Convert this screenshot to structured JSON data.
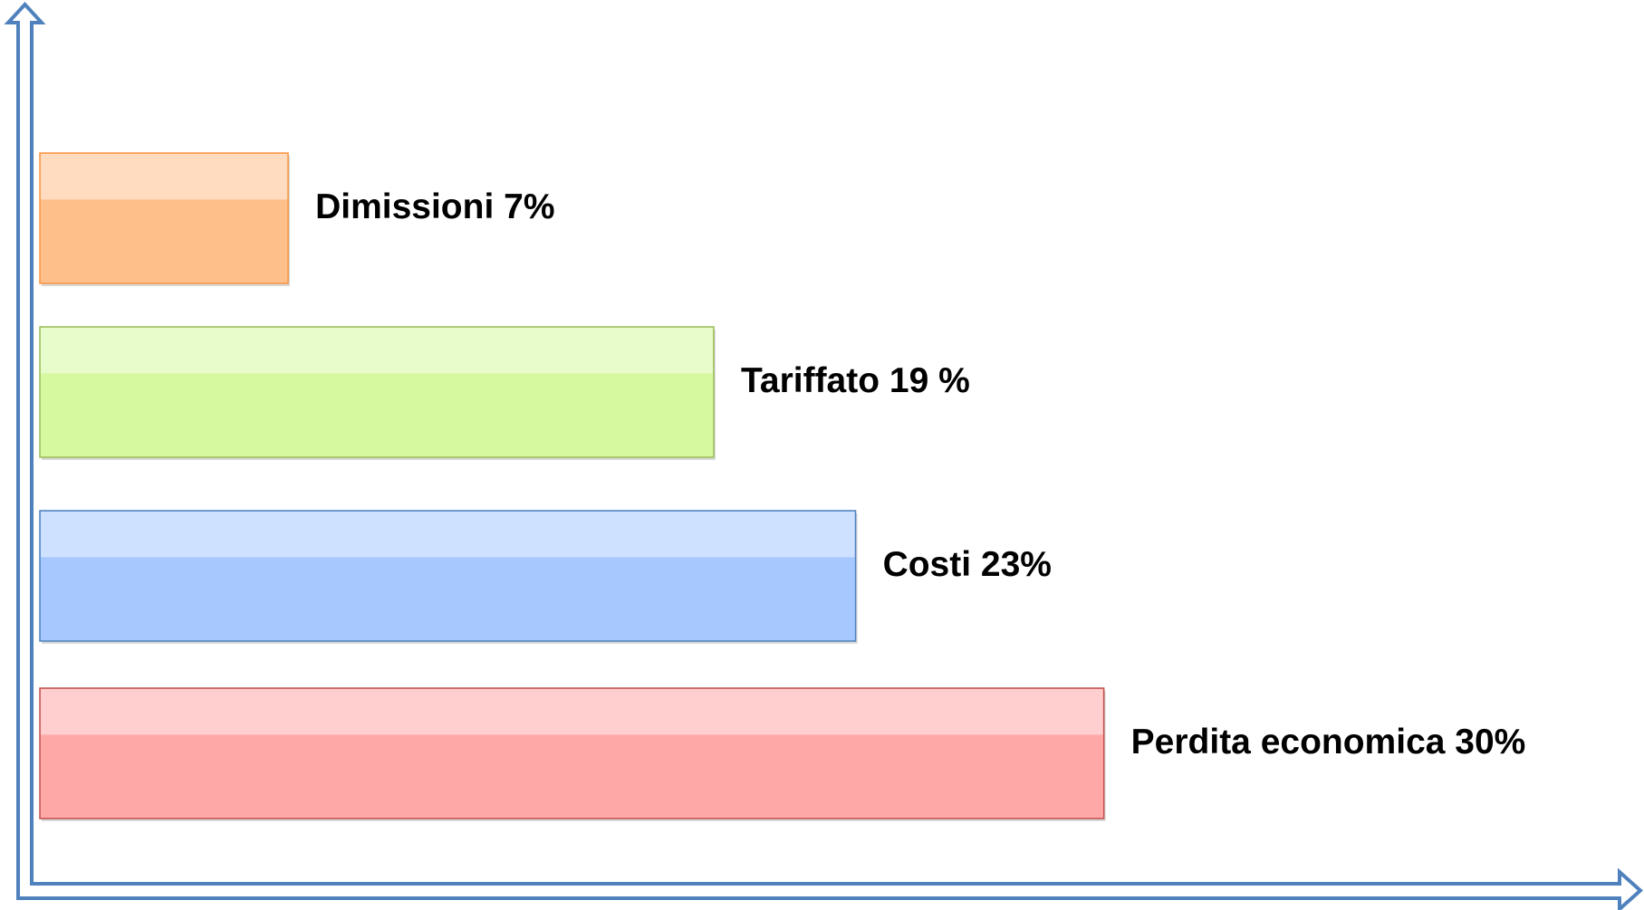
{
  "chart_data": {
    "type": "bar",
    "orientation": "horizontal",
    "categories": [
      "Dimissioni",
      "Tariffato",
      "Costi",
      "Perdita economica"
    ],
    "values": [
      7,
      19,
      23,
      30
    ],
    "value_labels": [
      "7%",
      "19 %",
      "23%",
      "30%"
    ],
    "colors": [
      "#ffbf8a",
      "#d6f9a0",
      "#a6c8ff",
      "#ffa8a8"
    ],
    "border_colors": [
      "#f79646",
      "#9bbb59",
      "#4f81bd",
      "#c0504d"
    ],
    "xlim": [
      0,
      45
    ]
  }
}
